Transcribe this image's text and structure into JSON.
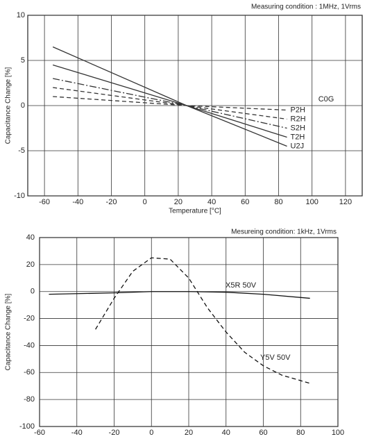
{
  "chart_data": [
    {
      "type": "line",
      "title": "Measuring condition : 1MHz, 1Vrms",
      "xlabel": "Temperature [°C]",
      "ylabel": "Capacitance Change [%]",
      "xlim": [
        -70,
        130
      ],
      "xticks": [
        -60,
        -40,
        -20,
        0,
        20,
        40,
        60,
        80,
        100,
        120
      ],
      "ylim": [
        -10,
        10
      ],
      "yticks": [
        -10,
        -5,
        0,
        5,
        10
      ],
      "grid": true,
      "annotations": [
        "C0G"
      ],
      "x": [
        -55,
        25,
        85
      ],
      "series": [
        {
          "name": "P2H",
          "color": "#333333",
          "linestyle": "dashed",
          "values": [
            1,
            0,
            -0.5
          ]
        },
        {
          "name": "R2H",
          "color": "#333333",
          "linestyle": "dashed",
          "values": [
            2,
            0,
            -1.5
          ]
        },
        {
          "name": "S2H",
          "color": "#333333",
          "linestyle": "dashdot",
          "values": [
            3,
            0,
            -2.5
          ]
        },
        {
          "name": "T2H",
          "color": "#333333",
          "linestyle": "solid",
          "values": [
            4.5,
            0,
            -3.5
          ]
        },
        {
          "name": "U2J",
          "color": "#333333",
          "linestyle": "solid",
          "values": [
            6.5,
            0,
            -4.5
          ]
        }
      ]
    },
    {
      "type": "line",
      "title": "Mesureing condition: 1kHz, 1Vrms",
      "ylabel": "Capacitance Change [%]",
      "xlim": [
        -60,
        100
      ],
      "xticks": [
        -60,
        -40,
        -20,
        0,
        20,
        40,
        60,
        80,
        100
      ],
      "ylim": [
        -100,
        40
      ],
      "yticks": [
        -100,
        -80,
        -60,
        -40,
        -20,
        0,
        20,
        40
      ],
      "grid": true,
      "series": [
        {
          "name": "X5R 50V",
          "color": "#111111",
          "linestyle": "solid",
          "x": [
            -55,
            -20,
            0,
            20,
            40,
            60,
            85
          ],
          "values": [
            -2,
            -1,
            0,
            0,
            -0.5,
            -2,
            -5
          ]
        },
        {
          "name": "Y5V 50V",
          "color": "#111111",
          "linestyle": "dashed",
          "x": [
            -30,
            -20,
            -10,
            0,
            10,
            20,
            30,
            40,
            50,
            60,
            70,
            85
          ],
          "values": [
            -28,
            -5,
            15,
            25,
            24,
            10,
            -12,
            -30,
            -45,
            -55,
            -62,
            -68
          ]
        }
      ]
    }
  ]
}
